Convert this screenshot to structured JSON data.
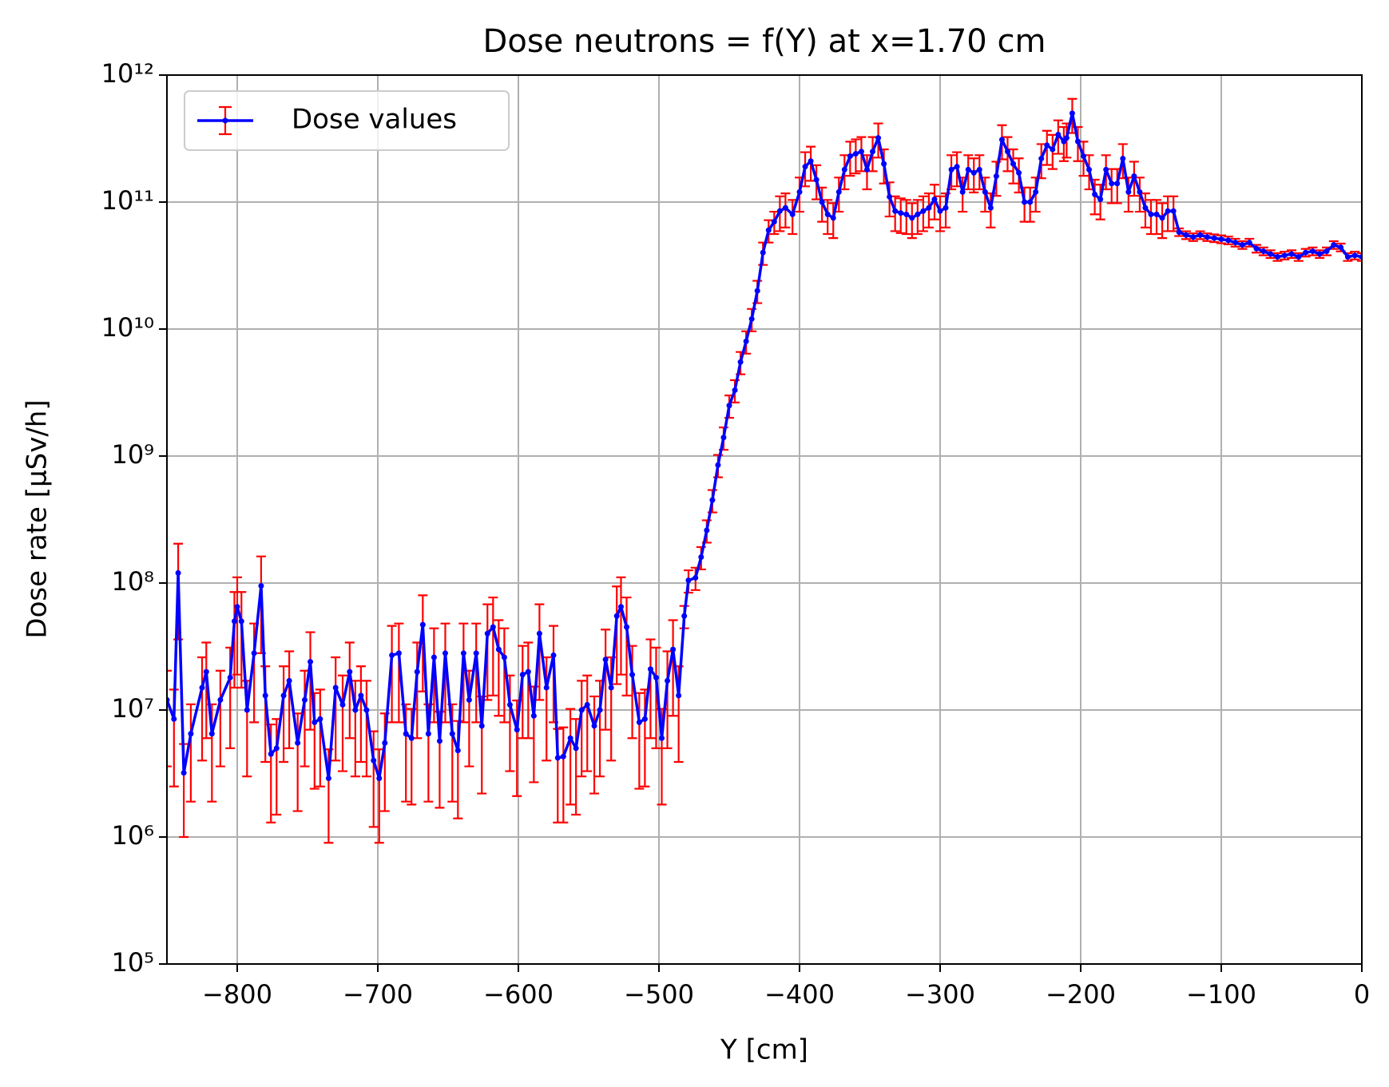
{
  "chart_data": {
    "type": "line",
    "title": "Dose neutrons = f(Y) at x=1.70 cm",
    "x_label": "Y [cm]",
    "y_label": "Dose rate [µSv/h]",
    "log_y": true,
    "grid": true,
    "legend": "upper left",
    "xlim": [
      -850,
      0
    ],
    "ylim": [
      100000,
      1000000000000
    ],
    "xticks": [
      {
        "value": -800,
        "label": "−800"
      },
      {
        "value": -700,
        "label": "−700"
      },
      {
        "value": -600,
        "label": "−600"
      },
      {
        "value": -500,
        "label": "−500"
      },
      {
        "value": -400,
        "label": "−400"
      },
      {
        "value": -300,
        "label": "−300"
      },
      {
        "value": -200,
        "label": "−200"
      },
      {
        "value": -100,
        "label": "−100"
      },
      0
    ],
    "yticks": [
      {
        "value": 100000,
        "label": "10⁵"
      },
      {
        "value": 1000000,
        "label": "10⁶"
      },
      {
        "value": 10000000,
        "label": "10⁷"
      },
      {
        "value": 100000000,
        "label": "10⁸"
      },
      {
        "value": 1000000000,
        "label": "10⁹"
      },
      {
        "value": 10000000000,
        "label": "10¹⁰"
      },
      {
        "value": 100000000000,
        "label": "10¹¹"
      },
      {
        "value": 1000000000000,
        "label": "10¹²"
      }
    ],
    "x": [
      -850,
      -845,
      -842,
      -838,
      -833,
      -825,
      -822,
      -818,
      -812,
      -805,
      -802,
      -800,
      -797,
      -793,
      -788,
      -783,
      -780,
      -776,
      -772,
      -767,
      -763,
      -757,
      -752,
      -748,
      -745,
      -741,
      -735,
      -730,
      -725,
      -720,
      -716,
      -712,
      -708,
      -703,
      -699,
      -695,
      -690,
      -685,
      -680,
      -676,
      -672,
      -668,
      -664,
      -660,
      -656,
      -652,
      -647,
      -643,
      -639,
      -635,
      -630,
      -626,
      -622,
      -618,
      -614,
      -610,
      -606,
      -601,
      -597,
      -593,
      -589,
      -585,
      -580,
      -575,
      -572,
      -568,
      -563,
      -559,
      -555,
      -551,
      -546,
      -542,
      -538,
      -534,
      -530,
      -527,
      -523,
      -519,
      -514,
      -510,
      -506,
      -502,
      -498,
      -494,
      -490,
      -486,
      -482,
      -479,
      -474,
      -470,
      -466,
      -462,
      -458,
      -454,
      -450,
      -446,
      -442,
      -438,
      -434,
      -430,
      -426,
      -422,
      -418,
      -414,
      -410,
      -405,
      -400,
      -396,
      -392,
      -388,
      -384,
      -380,
      -376,
      -372,
      -368,
      -364,
      -360,
      -356,
      -352,
      -348,
      -344,
      -340,
      -336,
      -332,
      -328,
      -324,
      -320,
      -316,
      -312,
      -308,
      -304,
      -300,
      -296,
      -292,
      -288,
      -284,
      -280,
      -276,
      -272,
      -268,
      -264,
      -260,
      -256,
      -252,
      -248,
      -244,
      -240,
      -236,
      -232,
      -228,
      -224,
      -220,
      -216,
      -212,
      -210,
      -206,
      -202,
      -198,
      -194,
      -190,
      -186,
      -182,
      -178,
      -174,
      -170,
      -166,
      -162,
      -158,
      -154,
      -150,
      -146,
      -142,
      -138,
      -134,
      -130,
      -125,
      -120,
      -115,
      -110,
      -105,
      -100,
      -95,
      -90,
      -85,
      -80,
      -75,
      -70,
      -65,
      -60,
      -55,
      -50,
      -45,
      -40,
      -35,
      -30,
      -25,
      -20,
      -15,
      -10,
      -5,
      0
    ],
    "series": [
      {
        "name": "Dose values",
        "color": "#0000ff",
        "error_color": "#ff0000",
        "values": [
          12000000.0,
          8500000.0,
          120000000.0,
          3200000.0,
          6500000.0,
          15000000.0,
          20000000.0,
          6500000.0,
          12000000.0,
          18000000.0,
          50000000.0,
          65000000.0,
          50000000.0,
          10000000.0,
          28000000.0,
          95000000.0,
          13000000.0,
          4500000.0,
          5000000.0,
          13000000.0,
          17000000.0,
          5500000.0,
          12000000.0,
          24000000.0,
          8000000.0,
          8500000.0,
          2900000.0,
          15000000.0,
          11000000.0,
          20000000.0,
          10000000.0,
          13000000.0,
          10000000.0,
          4000000.0,
          2900000.0,
          5500000.0,
          27000000.0,
          28000000.0,
          6500000.0,
          6000000.0,
          20000000.0,
          47000000.0,
          6500000.0,
          26000000.0,
          5700000.0,
          28000000.0,
          6500000.0,
          4800000.0,
          28000000.0,
          12000000.0,
          28000000.0,
          7500000.0,
          40000000.0,
          45000000.0,
          30000000.0,
          26000000.0,
          11000000.0,
          7000000.0,
          19000000.0,
          20000000.0,
          9000000.0,
          40000000.0,
          15000000.0,
          27000000.0,
          4200000.0,
          4300000.0,
          6000000.0,
          5000000.0,
          10000000.0,
          11000000.0,
          7500000.0,
          10000000.0,
          25000000.0,
          15000000.0,
          55000000.0,
          65000000.0,
          45000000.0,
          19000000.0,
          8000000.0,
          8500000.0,
          21000000.0,
          18000000.0,
          6000000.0,
          17000000.0,
          30000000.0,
          13000000.0,
          55000000.0,
          105000000.0,
          110000000.0,
          160000000.0,
          260000000.0,
          450000000.0,
          850000000.0,
          1400000000.0,
          2500000000.0,
          3300000000.0,
          5500000000.0,
          8000000000.0,
          12000000000.0,
          20000000000.0,
          40000000000.0,
          60000000000.0,
          70000000000.0,
          85000000000.0,
          90000000000.0,
          80000000000.0,
          120000000000.0,
          190000000000.0,
          210000000000.0,
          150000000000.0,
          100000000000.0,
          80000000000.0,
          75000000000.0,
          120000000000.0,
          180000000000.0,
          230000000000.0,
          240000000000.0,
          250000000000.0,
          180000000000.0,
          250000000000.0,
          320000000000.0,
          200000000000.0,
          110000000000.0,
          85000000000.0,
          82000000000.0,
          80000000000.0,
          75000000000.0,
          80000000000.0,
          85000000000.0,
          90000000000.0,
          105000000000.0,
          85000000000.0,
          90000000000.0,
          180000000000.0,
          190000000000.0,
          120000000000.0,
          180000000000.0,
          170000000000.0,
          180000000000.0,
          120000000000.0,
          90000000000.0,
          160000000000.0,
          310000000000.0,
          250000000000.0,
          200000000000.0,
          170000000000.0,
          100000000000.0,
          100000000000.0,
          120000000000.0,
          220000000000.0,
          280000000000.0,
          260000000000.0,
          340000000000.0,
          300000000000.0,
          320000000000.0,
          500000000000.0,
          300000000000.0,
          230000000000.0,
          180000000000.0,
          115000000000.0,
          105000000000.0,
          180000000000.0,
          140000000000.0,
          140000000000.0,
          220000000000.0,
          120000000000.0,
          160000000000.0,
          120000000000.0,
          90000000000.0,
          80000000000.0,
          80000000000.0,
          75000000000.0,
          85000000000.0,
          85000000000.0,
          58000000000.0,
          55000000000.0,
          53000000000.0,
          55000000000.0,
          53000000000.0,
          52000000000.0,
          51000000000.0,
          50000000000.0,
          48000000000.0,
          46000000000.0,
          48000000000.0,
          43000000000.0,
          41000000000.0,
          39000000000.0,
          37000000000.0,
          38000000000.0,
          39000000000.0,
          37000000000.0,
          40000000000.0,
          41000000000.0,
          39000000000.0,
          41000000000.0,
          46000000000.0,
          44000000000.0,
          37000000000.0,
          38000000000.0,
          37000000000.0
        ],
        "errors": [
          8400000.0,
          6000000.0,
          84000000.0,
          2200000.0,
          4600000.0,
          11000000.0,
          14000000.0,
          4600000.0,
          8400000.0,
          13000000.0,
          35000000.0,
          46000000.0,
          35000000.0,
          7000000.0,
          20000000.0,
          67000000.0,
          9100000.0,
          3200000.0,
          3500000.0,
          9100000.0,
          12000000.0,
          3900000.0,
          8400000.0,
          17000000.0,
          5600000.0,
          6000000.0,
          2000000.0,
          11000000.0,
          7700000.0,
          14000000.0,
          7000000.0,
          9100000.0,
          7000000.0,
          2800000.0,
          2000000.0,
          3900000.0,
          19000000.0,
          20000000.0,
          4600000.0,
          4200000.0,
          14000000.0,
          33000000.0,
          4600000.0,
          18000000.0,
          4000000.0,
          20000000.0,
          4600000.0,
          3400000.0,
          20000000.0,
          8400000.0,
          20000000.0,
          5300000.0,
          28000000.0,
          32000000.0,
          21000000.0,
          18000000.0,
          7700000.0,
          4900000.0,
          13000000.0,
          14000000.0,
          6300000.0,
          28000000.0,
          11000000.0,
          19000000.0,
          2900000.0,
          3000000.0,
          4200000.0,
          3500000.0,
          7000000.0,
          7700000.0,
          5300000.0,
          7000000.0,
          18000000.0,
          11000000.0,
          39000000.0,
          46000000.0,
          32000000.0,
          13000000.0,
          5600000.0,
          6000000.0,
          15000000.0,
          13000000.0,
          4200000.0,
          12000000.0,
          21000000.0,
          9100000.0,
          11000000.0,
          21000000.0,
          22000000.0,
          32000000.0,
          52000000.0,
          90000000.0,
          170000000.0,
          280000000.0,
          500000000.0,
          660000000.0,
          1100000000.0,
          1600000000.0,
          2400000000.0,
          4000000000.0,
          8000000000.0,
          12000000000.0,
          14000000000.0,
          26000000000.0,
          27000000000.0,
          24000000000.0,
          36000000000.0,
          57000000000.0,
          63000000000.0,
          45000000000.0,
          30000000000.0,
          24000000000.0,
          23000000000.0,
          36000000000.0,
          54000000000.0,
          69000000000.0,
          72000000000.0,
          75000000000.0,
          54000000000.0,
          75000000000.0,
          96000000000.0,
          60000000000.0,
          33000000000.0,
          26000000000.0,
          25000000000.0,
          24000000000.0,
          23000000000.0,
          24000000000.0,
          26000000000.0,
          27000000000.0,
          32000000000.0,
          26000000000.0,
          27000000000.0,
          54000000000.0,
          57000000000.0,
          36000000000.0,
          54000000000.0,
          51000000000.0,
          54000000000.0,
          36000000000.0,
          27000000000.0,
          48000000000.0,
          93000000000.0,
          75000000000.0,
          60000000000.0,
          51000000000.0,
          30000000000.0,
          30000000000.0,
          36000000000.0,
          66000000000.0,
          84000000000.0,
          78000000000.0,
          100000000000.0,
          90000000000.0,
          96000000000.0,
          150000000000.0,
          90000000000.0,
          69000000000.0,
          54000000000.0,
          35000000000.0,
          32000000000.0,
          54000000000.0,
          42000000000.0,
          42000000000.0,
          66000000000.0,
          36000000000.0,
          48000000000.0,
          36000000000.0,
          27000000000.0,
          24000000000.0,
          24000000000.0,
          23000000000.0,
          26000000000.0,
          26000000000.0,
          4000000000.0,
          3900000000.0,
          3700000000.0,
          3900000000.0,
          3700000000.0,
          3600000000.0,
          3600000000.0,
          3500000000.0,
          3400000000.0,
          3200000000.0,
          3400000000.0,
          3000000000.0,
          2900000000.0,
          2700000000.0,
          2600000000.0,
          2700000000.0,
          2700000000.0,
          2600000000.0,
          2800000000.0,
          2900000000.0,
          2700000000.0,
          2900000000.0,
          3200000000.0,
          3100000000.0,
          2600000000.0,
          2700000000.0,
          2600000000.0
        ]
      }
    ]
  }
}
